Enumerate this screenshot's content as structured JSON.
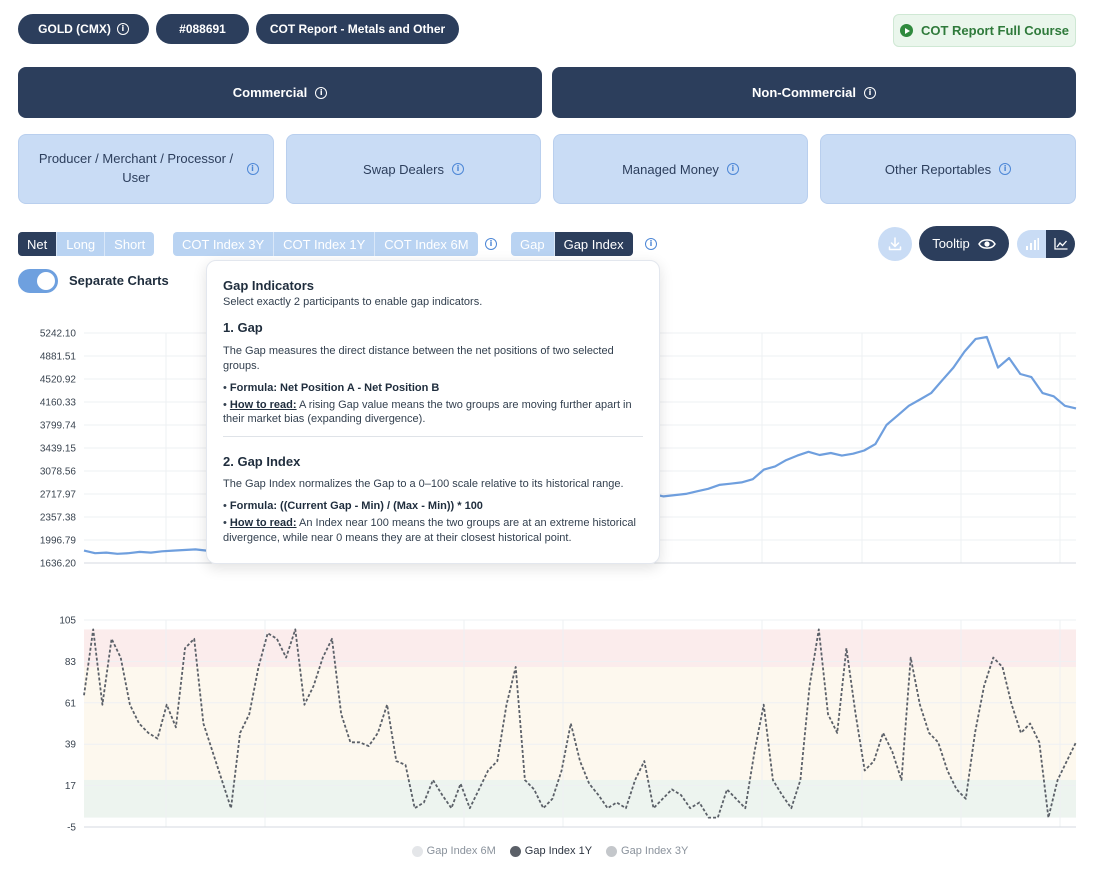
{
  "header": {
    "asset_label": "GOLD (CMX)",
    "code_label": "#088691",
    "report_label": "COT Report - Metals and Other",
    "course_label": "COT Report Full Course"
  },
  "groups": {
    "commercial": "Commercial",
    "non_commercial": "Non-Commercial"
  },
  "participants": [
    "Producer / Merchant / Processor / User",
    "Swap Dealers",
    "Managed Money",
    "Other Reportables"
  ],
  "controls": {
    "position": [
      "Net",
      "Long",
      "Short"
    ],
    "position_active": "Net",
    "cot_index": [
      "COT Index 3Y",
      "COT Index 1Y",
      "COT Index 6M"
    ],
    "gap": [
      "Gap",
      "Gap Index"
    ],
    "gap_active": "Gap Index",
    "tooltip_label": "Tooltip",
    "separate_charts_label": "Separate Charts",
    "separate_charts_on": true
  },
  "popover": {
    "title": "Gap Indicators",
    "subtitle": "Select exactly 2 participants to enable gap indicators.",
    "gap_heading": "1. Gap",
    "gap_desc": "The Gap measures the direct distance between the net positions of two selected groups.",
    "gap_formula": "Formula: Net Position A - Net Position B",
    "how_to_read": "How to read:",
    "gap_read": "A rising Gap value means the two groups are moving further apart in their market bias (expanding divergence).",
    "index_heading": "2. Gap Index",
    "index_desc": "The Gap Index normalizes the Gap to a 0–100 scale relative to its historical range.",
    "index_formula": "Formula: ((Current Gap - Min) / (Max - Min)) * 100",
    "index_read": "An Index near 100 means the two groups are at an extreme historical divergence, while near 0 means they are at their closest historical point."
  },
  "colors": {
    "navy": "#2c3e5c",
    "light_blue": "#c9dcf5",
    "price_line": "#6f9fde",
    "gap_line": "#5b6068",
    "zone_high": "#fbecec",
    "zone_mid": "#fdf8ee",
    "zone_low": "#edf4ef"
  },
  "chart_data": [
    {
      "type": "line",
      "series": [
        {
          "values": [
            1830,
            1790,
            1800,
            1780,
            1790,
            1810,
            1800,
            1820,
            1830,
            1840,
            1850,
            1830,
            1800,
            1820,
            1810,
            1800,
            1810,
            1820,
            1830,
            1850,
            1870,
            1900,
            1960,
            2000,
            2050,
            2100,
            2150,
            2180,
            2200,
            2250,
            2280,
            2300,
            2320,
            2350,
            2380,
            2400,
            2420,
            2440,
            2460,
            2480,
            2500,
            2520,
            2540,
            2560,
            2600,
            2640,
            2660,
            2700,
            2720,
            2710,
            2690,
            2720,
            2680,
            2700,
            2720,
            2760,
            2800,
            2860,
            2880,
            2900,
            2950,
            3100,
            3150,
            3250,
            3320,
            3380,
            3330,
            3360,
            3320,
            3350,
            3400,
            3500,
            3800,
            3950,
            4100,
            4200,
            4300,
            4500,
            4700,
            4950,
            5150,
            5180,
            4700,
            4850,
            4600,
            4550,
            4300,
            4250,
            4100,
            4060
          ],
          "color": "#6f9fde"
        }
      ],
      "yticks": [
        "5242.10",
        "4881.51",
        "4520.92",
        "4160.33",
        "3799.74",
        "3439.15",
        "3078.56",
        "2717.97",
        "2357.38",
        "1996.79",
        "1636.20"
      ],
      "ylim": [
        1636.2,
        5242.1
      ],
      "grid": true
    },
    {
      "type": "line",
      "series": [
        {
          "name": "Gap Index 1Y",
          "values": [
            65,
            100,
            60,
            95,
            85,
            60,
            50,
            45,
            42,
            60,
            48,
            90,
            95,
            50,
            35,
            20,
            5,
            45,
            55,
            80,
            98,
            95,
            85,
            100,
            60,
            70,
            85,
            95,
            55,
            40,
            40,
            38,
            45,
            60,
            30,
            28,
            5,
            8,
            20,
            12,
            5,
            18,
            5,
            15,
            25,
            30,
            60,
            80,
            20,
            15,
            5,
            10,
            25,
            50,
            30,
            18,
            12,
            5,
            8,
            5,
            20,
            30,
            5,
            10,
            15,
            12,
            5,
            8,
            0,
            0,
            15,
            10,
            5,
            35,
            60,
            20,
            12,
            5,
            20,
            70,
            100,
            55,
            45,
            90,
            55,
            25,
            30,
            45,
            35,
            20,
            85,
            60,
            45,
            40,
            25,
            15,
            10,
            45,
            70,
            85,
            80,
            60,
            45,
            50,
            40,
            0,
            20,
            30,
            40
          ],
          "color": "#5b6068"
        }
      ],
      "yticks": [
        "105",
        "83",
        "61",
        "39",
        "17",
        "-5"
      ],
      "ylim": [
        -5,
        105
      ],
      "zones": [
        [
          80,
          100
        ],
        [
          20,
          80
        ],
        [
          0,
          20
        ]
      ],
      "legend": [
        "Gap Index 6M",
        "Gap Index 1Y",
        "Gap Index 3Y"
      ],
      "legend_active": "Gap Index 1Y",
      "grid": true
    }
  ]
}
